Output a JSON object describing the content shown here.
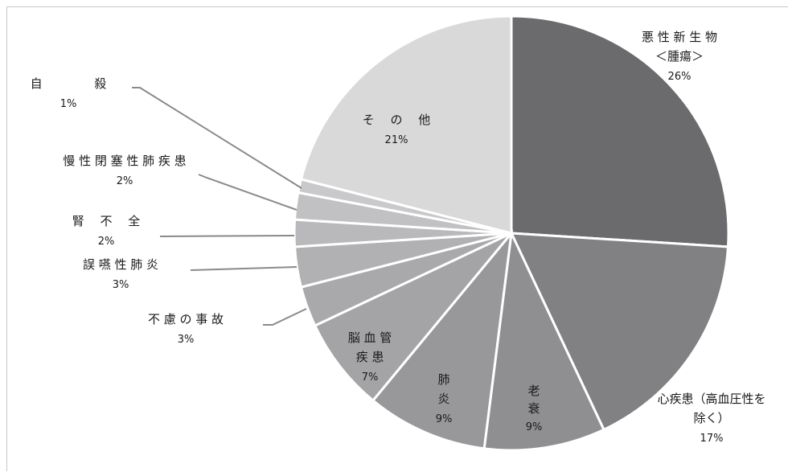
{
  "chart_data": {
    "type": "pie",
    "title": "",
    "colors": {
      "悪性新生物": "#6b6b6e",
      "心疾患": "#818184",
      "老衰": "#8f8f91",
      "肺炎": "#98989a",
      "脳血管疾患": "#a4a4a6",
      "不慮の事故": "#a9a9ab",
      "誤嚥性肺炎": "#b1b1b3",
      "腎不全": "#b9b9bb",
      "慢性閉塞性肺疾患": "#c1c1c3",
      "自殺": "#c9c9cb",
      "その他": "#d9d9d9"
    },
    "slices": [
      {
        "key": "悪性新生物",
        "lines": [
          "悪 性 新 生 物",
          "＜腫瘍＞",
          "26%"
        ],
        "value": 26
      },
      {
        "key": "心疾患",
        "lines": [
          "心疾患（高血圧性を",
          "除く）",
          "17%"
        ],
        "value": 17
      },
      {
        "key": "老衰",
        "lines": [
          "老",
          "衰",
          "9%"
        ],
        "value": 9
      },
      {
        "key": "肺炎",
        "lines": [
          "肺",
          "炎",
          "9%"
        ],
        "value": 9
      },
      {
        "key": "脳血管疾患",
        "lines": [
          "脳 血 管",
          "疾 患",
          "7%"
        ],
        "value": 7
      },
      {
        "key": "不慮の事故",
        "lines": [
          "不 慮 の 事 故",
          "3%"
        ],
        "value": 3
      },
      {
        "key": "誤嚥性肺炎",
        "lines": [
          "誤 嚥 性 肺 炎",
          "3%"
        ],
        "value": 3
      },
      {
        "key": "腎不全",
        "lines": [
          "腎　 不 　全",
          "2%"
        ],
        "value": 2
      },
      {
        "key": "慢性閉塞性肺疾患",
        "lines": [
          "慢 性 閉 塞 性 肺 疾 患",
          "2%"
        ],
        "value": 2
      },
      {
        "key": "自殺",
        "lines": [
          "自　　　　 殺",
          "1%"
        ],
        "value": 1
      },
      {
        "key": "その他",
        "lines": [
          "そ 　の　 他",
          "21%"
        ],
        "value": 21
      }
    ]
  }
}
